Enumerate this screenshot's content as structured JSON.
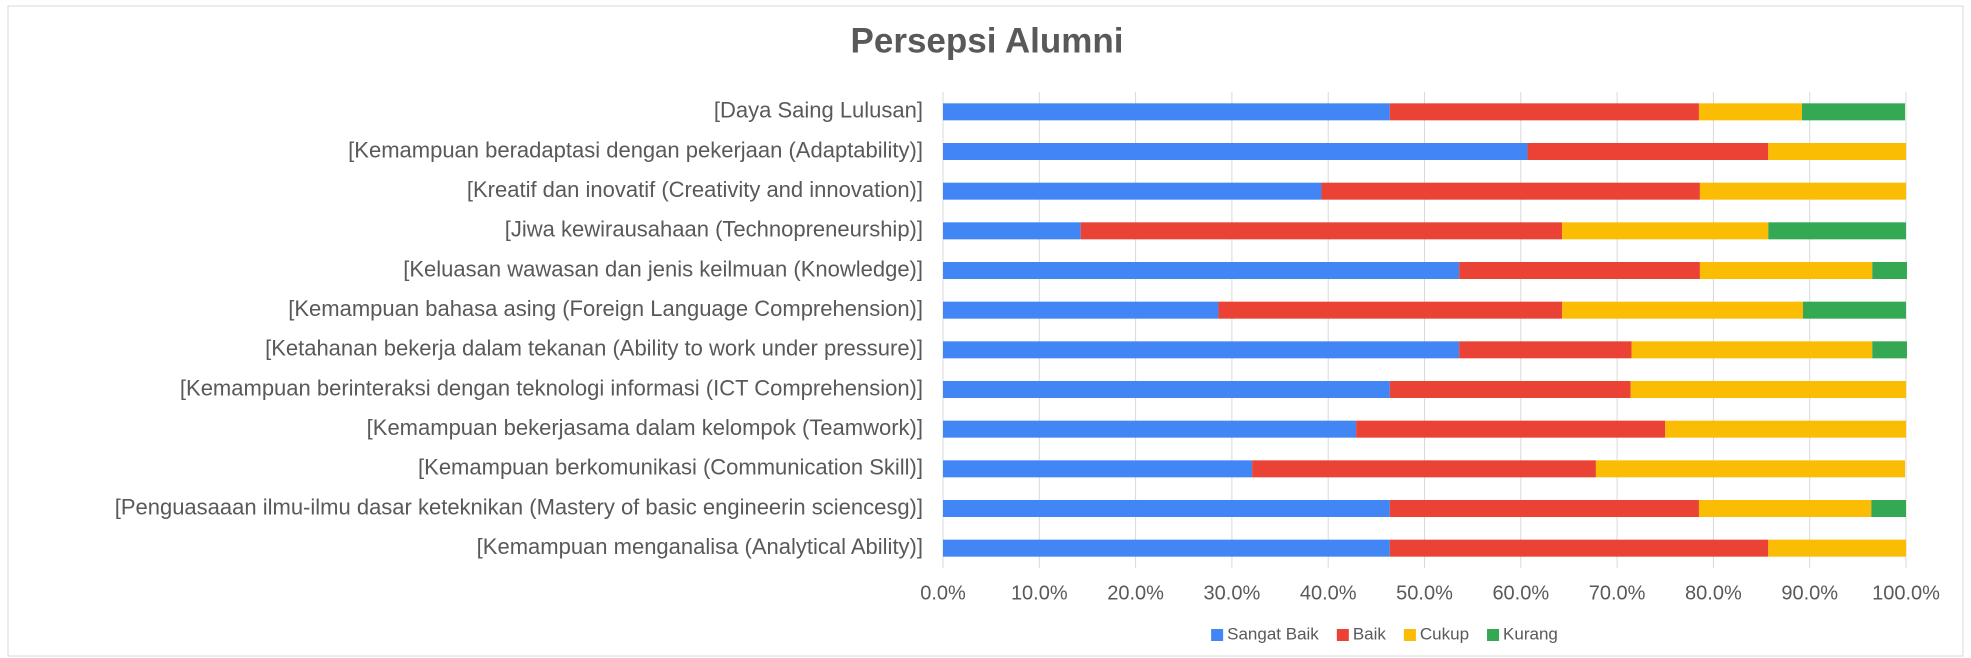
{
  "chart_data": {
    "type": "stacked_bar_horizontal",
    "title": "Persepsi Alumni",
    "categories": [
      "[Daya Saing Lulusan]",
      "[Kemampuan beradaptasi dengan pekerjaan (Adaptability)]",
      "[Kreatif dan inovatif (Creativity and innovation)]",
      "[Jiwa kewirausahaan (Technopreneurship)]",
      "[Keluasan wawasan dan jenis keilmuan (Knowledge)]",
      "[Kemampuan bahasa asing (Foreign Language Comprehension)]",
      "[Ketahanan bekerja dalam tekanan (Ability to work under pressure)]",
      "[Kemampuan berinteraksi dengan teknologi informasi (ICT Comprehension)]",
      "[Kemampuan bekerjasama dalam kelompok (Teamwork)]",
      "[Kemampuan berkomunikasi (Communication Skill)]",
      "[Penguasaaan ilmu-ilmu dasar keteknikan (Mastery of basic engineerin sciencesg)]",
      "[Kemampuan menganalisa (Analytical Ability)]"
    ],
    "series": [
      {
        "name": "Sangat Baik",
        "color": "#4285f4",
        "values": [
          46.4,
          60.7,
          39.3,
          14.3,
          53.6,
          28.6,
          53.6,
          46.4,
          42.9,
          32.1,
          46.4,
          46.4
        ]
      },
      {
        "name": "Baik",
        "color": "#ea4335",
        "values": [
          32.1,
          25.0,
          39.3,
          50.0,
          25.0,
          35.7,
          17.9,
          25.0,
          32.1,
          35.7,
          32.1,
          39.3
        ]
      },
      {
        "name": "Cukup",
        "color": "#fbbc04",
        "values": [
          10.7,
          14.3,
          21.4,
          21.4,
          17.9,
          25.0,
          25.0,
          28.6,
          25.0,
          32.1,
          17.9,
          14.3
        ]
      },
      {
        "name": "Kurang",
        "color": "#34a853",
        "values": [
          10.7,
          0,
          0,
          14.3,
          3.6,
          10.7,
          3.6,
          0,
          0,
          0,
          3.6,
          0
        ]
      }
    ],
    "xlim": [
      0,
      100
    ],
    "xticks": [
      {
        "value": 0,
        "label": "0.0%"
      },
      {
        "value": 10,
        "label": "10.0%"
      },
      {
        "value": 20,
        "label": "20.0%"
      },
      {
        "value": 30,
        "label": "30.0%"
      },
      {
        "value": 40,
        "label": "40.0%"
      },
      {
        "value": 50,
        "label": "50.0%"
      },
      {
        "value": 60,
        "label": "60.0%"
      },
      {
        "value": 70,
        "label": "70.0%"
      },
      {
        "value": 80,
        "label": "80.0%"
      },
      {
        "value": 90,
        "label": "90.0%"
      },
      {
        "value": 100,
        "label": "100.0%"
      }
    ],
    "grid": true,
    "legend": "bottom"
  }
}
